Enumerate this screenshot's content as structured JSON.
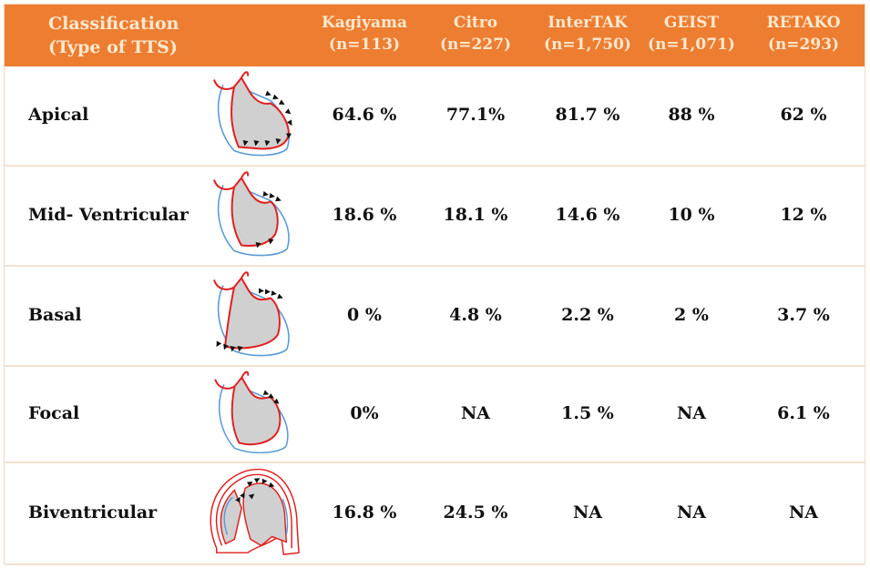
{
  "header": {
    "classification": [
      "Classification",
      "(Type of TTS)"
    ],
    "studies": [
      {
        "name": "Kagiyama",
        "n": "(n=113)"
      },
      {
        "name": "Citro",
        "n": "(n=227)"
      },
      {
        "name": "InterTAK",
        "n": "(n=1,750)"
      },
      {
        "name": "GEIST",
        "n": "(n=1,071)"
      },
      {
        "name": "RETAKO",
        "n": "(n=293)"
      }
    ]
  },
  "rows": [
    {
      "type": "Apical",
      "icon": "apical-heart-diagram",
      "values": [
        "64.6 %",
        "77.1%",
        "81.7 %",
        "88 %",
        "62 %"
      ]
    },
    {
      "type": "Mid- Ventricular",
      "icon": "mid-ventricular-heart-diagram",
      "values": [
        "18.6 %",
        "18.1 %",
        "14.6 %",
        "10 %",
        "12 %"
      ]
    },
    {
      "type": "Basal",
      "icon": "basal-heart-diagram",
      "values": [
        "0 %",
        "4.8 %",
        "2.2 %",
        "2 %",
        "3.7 %"
      ]
    },
    {
      "type": "Focal",
      "icon": "focal-heart-diagram",
      "values": [
        "0%",
        "NA",
        "1.5 %",
        "NA",
        "6.1 %"
      ]
    },
    {
      "type": "Biventricular",
      "icon": "biventricular-heart-diagram",
      "values": [
        "16.8 %",
        "24.5 %",
        "NA",
        "NA",
        "NA"
      ]
    }
  ],
  "colors": {
    "header_bg": "#ed7d31",
    "header_text": "#fbe9cf",
    "outline_red": "#e02020",
    "outline_blue": "#5b9bd5",
    "fill_gray": "#d0d0d0"
  }
}
